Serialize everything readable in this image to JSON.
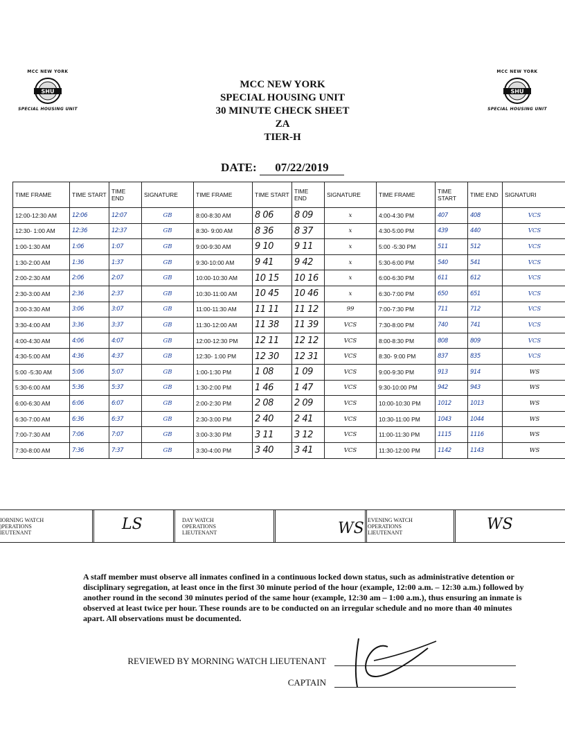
{
  "logo": {
    "top_text": "MCC NEW YORK",
    "center_text": "SHU",
    "bottom_text": "SPECIAL HOUSING UNIT"
  },
  "header": {
    "line1": "MCC NEW YORK",
    "line2": "SPECIAL HOUSING UNIT",
    "line3": "30 MINUTE CHECK SHEET",
    "line4": "ZA",
    "line5": "TIER-H"
  },
  "date": {
    "label": "DATE:",
    "value": "07/22/2019"
  },
  "columns": [
    "TIME FRAME",
    "TIME START",
    "TIME END",
    "SIGNATURE",
    "TIME FRAME",
    "TIME START",
    "TIME END",
    "SIGNATURE",
    "TIME FRAME",
    "TIME START",
    "TIME END",
    "SIGNATURI"
  ],
  "rows": [
    [
      "12:00-12:30 AM",
      "12:06",
      "12:07",
      "GB",
      "8:00-8:30 AM",
      "8 06",
      "8 09",
      "x",
      "4:00-4:30 PM",
      "407",
      "408",
      "VCS"
    ],
    [
      "12:30- 1:00 AM",
      "12:36",
      "12:37",
      "GB",
      "8:30- 9:00 AM",
      "8 36",
      "8 37",
      "x",
      "4:30-5:00 PM",
      "439",
      "440",
      "VCS"
    ],
    [
      "1:00-1:30 AM",
      "1:06",
      "1:07",
      "GB",
      "9:00-9:30 AM",
      "9 10",
      "9 11",
      "x",
      "5:00 -5:30 PM",
      "511",
      "512",
      "VCS"
    ],
    [
      "1:30-2:00 AM",
      "1:36",
      "1:37",
      "GB",
      "9:30-10:00 AM",
      "9 41",
      "9 42",
      "x",
      "5:30-6:00 PM",
      "540",
      "541",
      "VCS"
    ],
    [
      "2:00-2:30 AM",
      "2:06",
      "2:07",
      "GB",
      "10:00-10:30 AM",
      "10 15",
      "10 16",
      "x",
      "6:00-6:30 PM",
      "611",
      "612",
      "VCS"
    ],
    [
      "2:30-3:00 AM",
      "2:36",
      "2:37",
      "GB",
      "10:30-11:00 AM",
      "10 45",
      "10 46",
      "x",
      "6:30-7:00 PM",
      "650",
      "651",
      "VCS"
    ],
    [
      "3:00-3:30 AM",
      "3:06",
      "3:07",
      "GB",
      "11:00-11:30 AM",
      "11 11",
      "11 12",
      "99",
      "7:00-7:30 PM",
      "711",
      "712",
      "VCS"
    ],
    [
      "3:30-4:00 AM",
      "3:36",
      "3:37",
      "GB",
      "11:30-12:00 AM",
      "11 38",
      "11 39",
      "VCS",
      "7:30-8:00 PM",
      "740",
      "741",
      "VCS"
    ],
    [
      "4:00-4:30 AM",
      "4:06",
      "4:07",
      "GB",
      "12:00-12:30 PM",
      "12 11",
      "12 12",
      "VCS",
      "8:00-8:30 PM",
      "808",
      "809",
      "VCS"
    ],
    [
      "4:30-5:00 AM",
      "4:36",
      "4:37",
      "GB",
      "12:30- 1:00 PM",
      "12 30",
      "12 31",
      "VCS",
      "8:30- 9:00 PM",
      "837",
      "835",
      "VCS"
    ],
    [
      "5:00 -5:30 AM",
      "5:06",
      "5:07",
      "GB",
      "1:00-1:30 PM",
      "1 08",
      "1 09",
      "VCS",
      "9:00-9:30 PM",
      "913",
      "914",
      "WS"
    ],
    [
      "5:30-6:00 AM",
      "5:36",
      "5:37",
      "GB",
      "1:30-2:00 PM",
      "1 46",
      "1 47",
      "VCS",
      "9:30-10:00 PM",
      "942",
      "943",
      "WS"
    ],
    [
      "6:00-6:30 AM",
      "6:06",
      "6:07",
      "GB",
      "2:00-2:30 PM",
      "2 08",
      "2 09",
      "VCS",
      "10:00-10:30 PM",
      "1012",
      "1013",
      "WS"
    ],
    [
      "6:30-7:00 AM",
      "6:36",
      "6:37",
      "GB",
      "2:30-3:00 PM",
      "2 40",
      "2 41",
      "VCS",
      "10:30-11:00 PM",
      "1043",
      "1044",
      "WS"
    ],
    [
      "7:00-7:30 AM",
      "7:06",
      "7:07",
      "GB",
      "3:00-3:30 PM",
      "3 11",
      "3 12",
      "VCS",
      "11:00-11:30 PM",
      "1115",
      "1116",
      "WS"
    ],
    [
      "7:30-8:00 AM",
      "7:36",
      "7:37",
      "GB",
      "3:30-4:00 PM",
      "3 40",
      "3 41",
      "VCS",
      "11:30-12:00 PM",
      "1142",
      "1143",
      "WS"
    ]
  ],
  "watch": {
    "morning": "MORNING WATCH\nOPERATIONS\nLIEUTENANT",
    "morning_lines": [
      "IORNING WATCH",
      ")PERATIONS",
      "IEUTENANT"
    ],
    "day_lines": [
      "DAY WATCH",
      "OPERATIONS",
      "LIEUTENANT"
    ],
    "evening_lines": [
      "EVENING WATCH",
      "OPERATIONS",
      "LIEUTENANT"
    ],
    "morning_sig": "LS",
    "day_sig": "WS",
    "evening_sig": "WS"
  },
  "notice": "A staff member must observe all inmates confined in a continuous locked down status, such as administrative detention or disciplinary segregation, at least once in the first 30 minute period of the hour (example, 12:00 a.m. – 12:30 a.m.) followed by another round in the second 30 minutes period of the same hour (example, 12:30 am – 1:00 a.m.), thus ensuring an inmate is observed at least twice per hour. These rounds are to be conducted on an irregular schedule and no more than 40 minutes apart. All observations must be documented.",
  "review": {
    "morning_label": "REVIEWED BY MORNING WATCH LIEUTENANT",
    "captain_label": "CAPTAIN"
  },
  "colors": {
    "ink_blue": "#1a3f9c",
    "ink_black": "#111111"
  }
}
